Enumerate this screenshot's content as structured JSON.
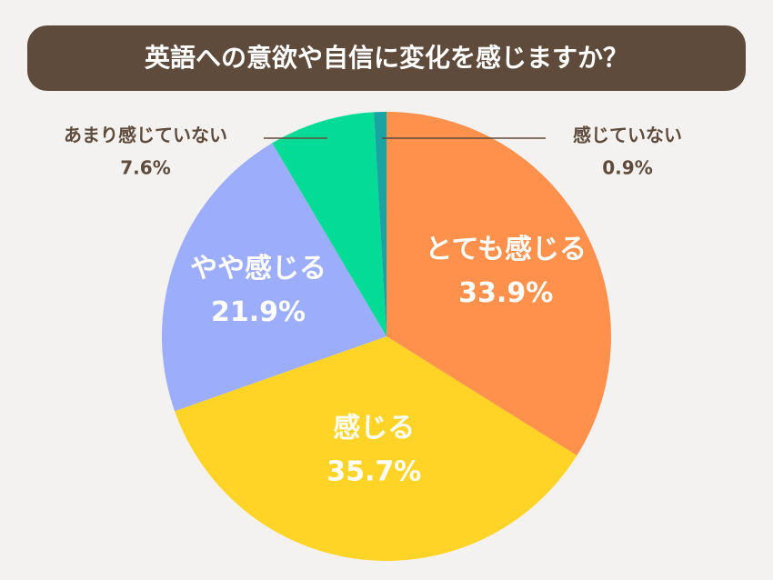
{
  "chart_data": {
    "type": "pie",
    "title": "英語への意欲や自信に変化を感じますか？",
    "categories": [
      "とても感じる",
      "感じる",
      "やや感じる",
      "あまり感じていない",
      "感じていない"
    ],
    "values": [
      33.9,
      35.7,
      21.9,
      7.6,
      0.9
    ],
    "value_labels": [
      "33.9%",
      "35.7%",
      "21.9%",
      "7.6%",
      "0.9%"
    ],
    "colors": [
      "#ff914d",
      "#ffd426",
      "#9cadfc",
      "#03db96",
      "#1aa3a3"
    ]
  }
}
